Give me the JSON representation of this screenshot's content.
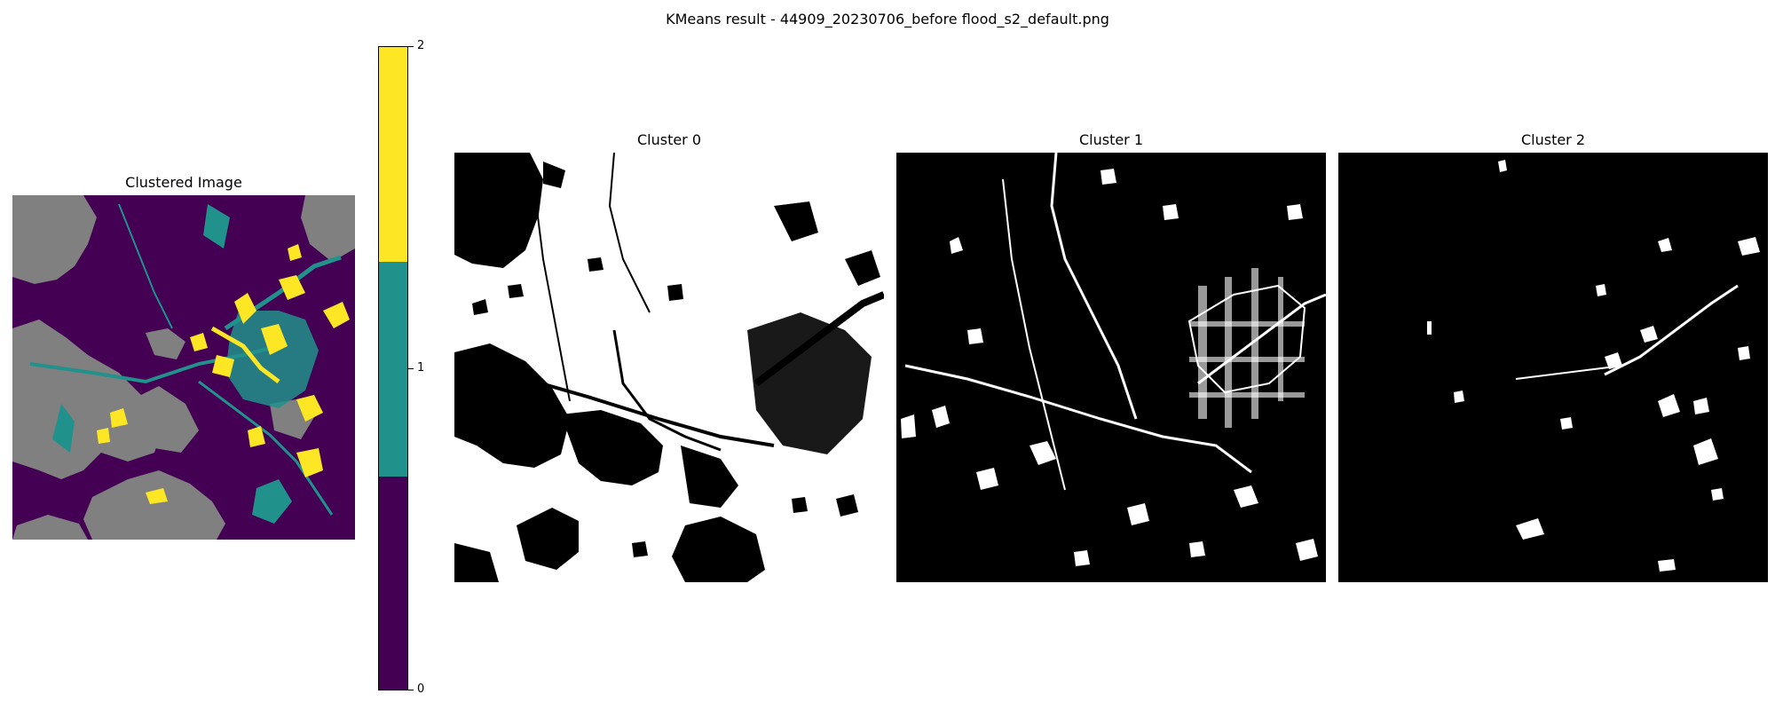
{
  "figure": {
    "title": "KMeans result - 44909_20230706_before flood_s2_default.png"
  },
  "clustered_panel": {
    "title": "Clustered Image",
    "description_colors": {
      "cluster0": "#440154",
      "cluster1": "#21918c",
      "cluster2": "#fde725",
      "nodata": "#808080"
    }
  },
  "colorbar": {
    "ticks": [
      "2",
      "1",
      "0"
    ],
    "segments": [
      {
        "cluster": 2,
        "color": "#fde725"
      },
      {
        "cluster": 1,
        "color": "#21918c"
      },
      {
        "cluster": 0,
        "color": "#440154"
      }
    ]
  },
  "mask_panels": [
    {
      "title": "Cluster 0",
      "background": "#ffffff",
      "foreground": "#000000"
    },
    {
      "title": "Cluster 1",
      "background": "#000000",
      "foreground": "#ffffff"
    },
    {
      "title": "Cluster 2",
      "background": "#000000",
      "foreground": "#ffffff"
    }
  ]
}
